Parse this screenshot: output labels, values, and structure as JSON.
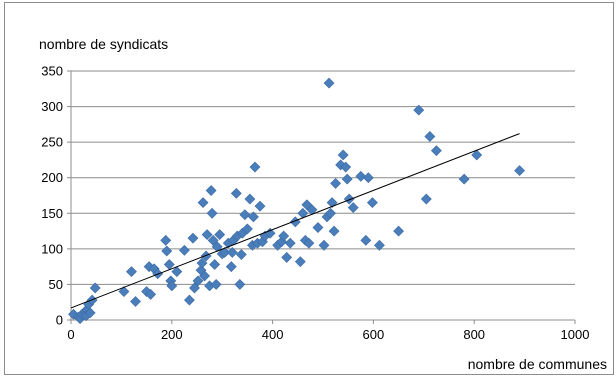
{
  "chart_data": {
    "type": "scatter",
    "title": "",
    "xlabel": "nombre de communes",
    "ylabel": "nombre de syndicats",
    "xlim": [
      0,
      1000
    ],
    "ylim": [
      0,
      350
    ],
    "x_ticks": [
      0,
      200,
      400,
      600,
      800,
      1000
    ],
    "y_ticks": [
      0,
      50,
      100,
      150,
      200,
      250,
      300,
      350
    ],
    "grid": "horizontal",
    "marker": "diamond",
    "marker_color": "#4a7ebb",
    "trendline": {
      "type": "linear",
      "from": [
        0,
        17
      ],
      "to": [
        890,
        262
      ],
      "color": "#000000"
    },
    "points": [
      [
        5,
        8
      ],
      [
        15,
        4
      ],
      [
        18,
        2
      ],
      [
        22,
        8
      ],
      [
        28,
        12
      ],
      [
        32,
        14
      ],
      [
        30,
        6
      ],
      [
        38,
        10
      ],
      [
        35,
        22
      ],
      [
        42,
        28
      ],
      [
        48,
        45
      ],
      [
        105,
        40
      ],
      [
        120,
        68
      ],
      [
        128,
        26
      ],
      [
        150,
        40
      ],
      [
        155,
        75
      ],
      [
        158,
        36
      ],
      [
        165,
        72
      ],
      [
        172,
        65
      ],
      [
        188,
        112
      ],
      [
        190,
        97
      ],
      [
        195,
        78
      ],
      [
        198,
        55
      ],
      [
        200,
        48
      ],
      [
        210,
        68
      ],
      [
        225,
        98
      ],
      [
        235,
        28
      ],
      [
        242,
        115
      ],
      [
        245,
        45
      ],
      [
        252,
        55
      ],
      [
        258,
        70
      ],
      [
        260,
        80
      ],
      [
        262,
        165
      ],
      [
        265,
        62
      ],
      [
        268,
        90
      ],
      [
        270,
        120
      ],
      [
        275,
        48
      ],
      [
        278,
        182
      ],
      [
        280,
        150
      ],
      [
        282,
        112
      ],
      [
        285,
        78
      ],
      [
        288,
        50
      ],
      [
        290,
        103
      ],
      [
        295,
        120
      ],
      [
        300,
        93
      ],
      [
        305,
        95
      ],
      [
        312,
        108
      ],
      [
        318,
        75
      ],
      [
        320,
        95
      ],
      [
        322,
        112
      ],
      [
        328,
        178
      ],
      [
        330,
        118
      ],
      [
        335,
        50
      ],
      [
        338,
        92
      ],
      [
        340,
        122
      ],
      [
        345,
        148
      ],
      [
        350,
        128
      ],
      [
        355,
        170
      ],
      [
        360,
        105
      ],
      [
        362,
        145
      ],
      [
        365,
        215
      ],
      [
        370,
        108
      ],
      [
        375,
        160
      ],
      [
        380,
        110
      ],
      [
        385,
        118
      ],
      [
        395,
        122
      ],
      [
        410,
        105
      ],
      [
        418,
        110
      ],
      [
        422,
        118
      ],
      [
        428,
        88
      ],
      [
        435,
        108
      ],
      [
        445,
        138
      ],
      [
        455,
        82
      ],
      [
        460,
        150
      ],
      [
        465,
        112
      ],
      [
        468,
        162
      ],
      [
        472,
        108
      ],
      [
        478,
        155
      ],
      [
        490,
        130
      ],
      [
        502,
        105
      ],
      [
        508,
        145
      ],
      [
        512,
        333
      ],
      [
        515,
        150
      ],
      [
        518,
        165
      ],
      [
        522,
        125
      ],
      [
        525,
        192
      ],
      [
        535,
        218
      ],
      [
        540,
        232
      ],
      [
        545,
        215
      ],
      [
        548,
        198
      ],
      [
        552,
        170
      ],
      [
        560,
        158
      ],
      [
        575,
        202
      ],
      [
        585,
        112
      ],
      [
        590,
        200
      ],
      [
        598,
        165
      ],
      [
        612,
        105
      ],
      [
        650,
        125
      ],
      [
        690,
        295
      ],
      [
        705,
        170
      ],
      [
        712,
        258
      ],
      [
        725,
        238
      ],
      [
        780,
        198
      ],
      [
        805,
        232
      ],
      [
        890,
        210
      ]
    ]
  }
}
